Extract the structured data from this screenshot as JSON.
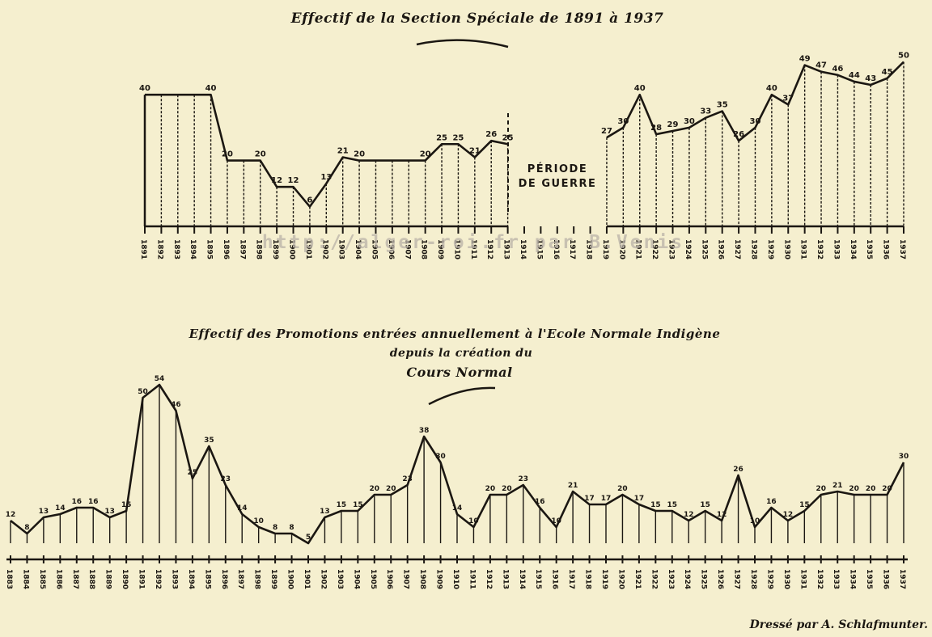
{
  "watermark": "http://alger-roi.fr par B.Venis",
  "credit": "Dressé par A. Schlafmunter.",
  "colors": {
    "paper": "#f5efcf",
    "ink": "#1b1712"
  },
  "chart_data": [
    {
      "type": "line",
      "title_lines": [
        "Effectif de la Section Spéciale de 1891 à 1937"
      ],
      "xlabel": "",
      "ylabel": "",
      "ylim": [
        0,
        50
      ],
      "grid": false,
      "war_label_lines": [
        "PÉRIODE",
        "DE GUERRE"
      ],
      "war_years": [
        "1914",
        "1915",
        "1916",
        "1917",
        "1918"
      ],
      "categories": [
        "1891",
        "1892",
        "1893",
        "1894",
        "1895",
        "1896",
        "1897",
        "1898",
        "1899",
        "1900",
        "1901",
        "1902",
        "1903",
        "1904",
        "1905",
        "1906",
        "1907",
        "1908",
        "1909",
        "1910",
        "1911",
        "1912",
        "1913",
        "1914",
        "1915",
        "1916",
        "1917",
        "1918",
        "1919",
        "1920",
        "1921",
        "1922",
        "1923",
        "1924",
        "1925",
        "1926",
        "1927",
        "1928",
        "1929",
        "1930",
        "1931",
        "1932",
        "1933",
        "1934",
        "1935",
        "1936",
        "1937"
      ],
      "values": [
        40,
        40,
        40,
        40,
        40,
        20,
        20,
        20,
        12,
        12,
        6,
        13,
        21,
        20,
        20,
        20,
        20,
        20,
        25,
        25,
        21,
        26,
        25,
        null,
        null,
        null,
        null,
        null,
        27,
        30,
        40,
        28,
        29,
        30,
        33,
        35,
        26,
        30,
        40,
        37,
        49,
        47,
        46,
        44,
        43,
        45,
        50
      ],
      "point_labels": [
        "40",
        "",
        "",
        "",
        "40",
        "20",
        "",
        "20",
        "12",
        "12",
        "6",
        "13",
        "21",
        "20",
        "",
        "",
        "",
        "20",
        "25",
        "25",
        "21",
        "26",
        "25",
        "",
        "",
        "",
        "",
        "",
        "27",
        "30",
        "40",
        "28",
        "29",
        "30",
        "33",
        "35",
        "26",
        "30",
        "40",
        "37",
        "49",
        "47",
        "46",
        "44",
        "43",
        "45",
        "50"
      ]
    },
    {
      "type": "line",
      "title_lines": [
        "Effectif des Promotions entrées annuellement à l'Ecole Normale Indigène",
        "depuis la création du",
        "Cours Normal"
      ],
      "xlabel": "",
      "ylabel": "",
      "ylim": [
        0,
        54
      ],
      "grid": false,
      "categories": [
        "1883",
        "1884",
        "1885",
        "1886",
        "1887",
        "1888",
        "1889",
        "1890",
        "1891",
        "1892",
        "1893",
        "1894",
        "1895",
        "1896",
        "1897",
        "1898",
        "1899",
        "1900",
        "1901",
        "1902",
        "1903",
        "1904",
        "1905",
        "1906",
        "1907",
        "1908",
        "1909",
        "1910",
        "1911",
        "1912",
        "1913",
        "1914",
        "1915",
        "1916",
        "1917",
        "1918",
        "1919",
        "1920",
        "1921",
        "1922",
        "1923",
        "1924",
        "1925",
        "1926",
        "1927",
        "1928",
        "1929",
        "1930",
        "1931",
        "1932",
        "1933",
        "1934",
        "1935",
        "1936",
        "1937"
      ],
      "values": [
        12,
        8,
        13,
        14,
        16,
        16,
        13,
        15,
        50,
        54,
        46,
        25,
        35,
        23,
        14,
        10,
        8,
        8,
        5,
        13,
        15,
        15,
        20,
        20,
        23,
        38,
        30,
        14,
        10,
        20,
        20,
        23,
        16,
        10,
        21,
        17,
        17,
        20,
        17,
        15,
        15,
        12,
        15,
        12,
        26,
        10,
        16,
        12,
        15,
        20,
        21,
        20,
        20,
        20,
        30
      ],
      "point_labels": [
        "12",
        "8",
        "13",
        "14",
        "16",
        "16",
        "13",
        "15",
        "50",
        "54",
        "46",
        "25",
        "35",
        "23",
        "14",
        "10",
        "8",
        "8",
        "5",
        "13",
        "15",
        "15",
        "20",
        "20",
        "23",
        "38",
        "30",
        "14",
        "10",
        "20",
        "20",
        "23",
        "16",
        "10",
        "21",
        "17",
        "17",
        "20",
        "17",
        "15",
        "15",
        "12",
        "15",
        "12",
        "26",
        "10",
        "16",
        "12",
        "15",
        "20",
        "21",
        "20",
        "20",
        "20",
        "30"
      ]
    }
  ]
}
